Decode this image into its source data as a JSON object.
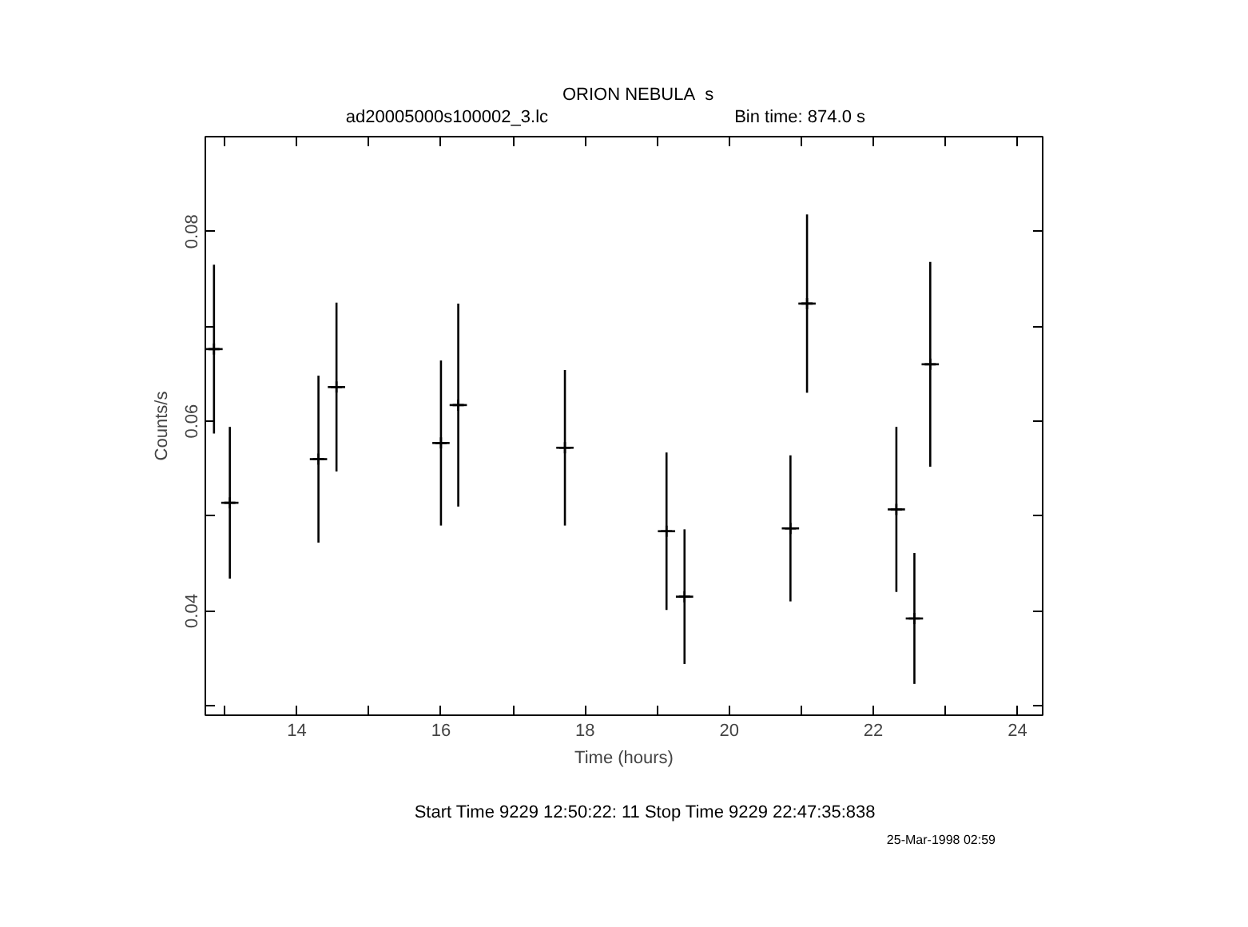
{
  "chart_data": {
    "type": "scatter",
    "title": "ORION NEBULA",
    "subtitle": "ad20005000s100002_3.lc",
    "xlabel": "Time (hours)",
    "ylabel": "Counts/s",
    "x": [
      12.85,
      13.07,
      14.3,
      14.55,
      16.0,
      16.24,
      17.72,
      19.13,
      19.38,
      20.85,
      21.08,
      22.32,
      22.57,
      22.79
    ],
    "values": [
      0.0676,
      0.0514,
      0.056,
      0.0636,
      0.0577,
      0.0617,
      0.0572,
      0.0484,
      0.0415,
      0.0487,
      0.0724,
      0.0507,
      0.0392,
      0.066
    ],
    "errors": [
      0.0089,
      0.008,
      0.0088,
      0.0089,
      0.0087,
      0.0107,
      0.0082,
      0.0083,
      0.0071,
      0.0077,
      0.0094,
      0.0087,
      0.0069,
      0.0108
    ],
    "xerrors": [
      0.12,
      0.12,
      0.12,
      0.12,
      0.12,
      0.12,
      0.12,
      0.12,
      0.12,
      0.12,
      0.12,
      0.12,
      0.12,
      0.12
    ],
    "color": "#000000",
    "marker": "cross",
    "xlim": [
      12.73,
      24.35
    ],
    "ylim": [
      0.029,
      0.09
    ],
    "xticks": [
      {
        "value": 13,
        "label": null
      },
      14,
      {
        "value": 15,
        "label": null
      },
      16,
      {
        "value": 17,
        "label": null
      },
      18,
      {
        "value": 19,
        "label": null
      },
      20,
      {
        "value": 21,
        "label": null
      },
      22,
      {
        "value": 23,
        "label": null
      },
      24
    ],
    "yticks": [
      {
        "value": 0.03,
        "label": null
      },
      0.04,
      {
        "value": 0.05,
        "label": null
      },
      0.06,
      {
        "value": 0.07,
        "label": null
      },
      0.08,
      {
        "value": 0.09,
        "label": null
      }
    ],
    "grid": false,
    "annotations": [
      "s",
      "Bin time:    874.0      s",
      "Start Time   9229 12:50:22: 11      Stop Time   9229 22:47:35:838",
      "25-Mar-1998 02:59"
    ]
  }
}
